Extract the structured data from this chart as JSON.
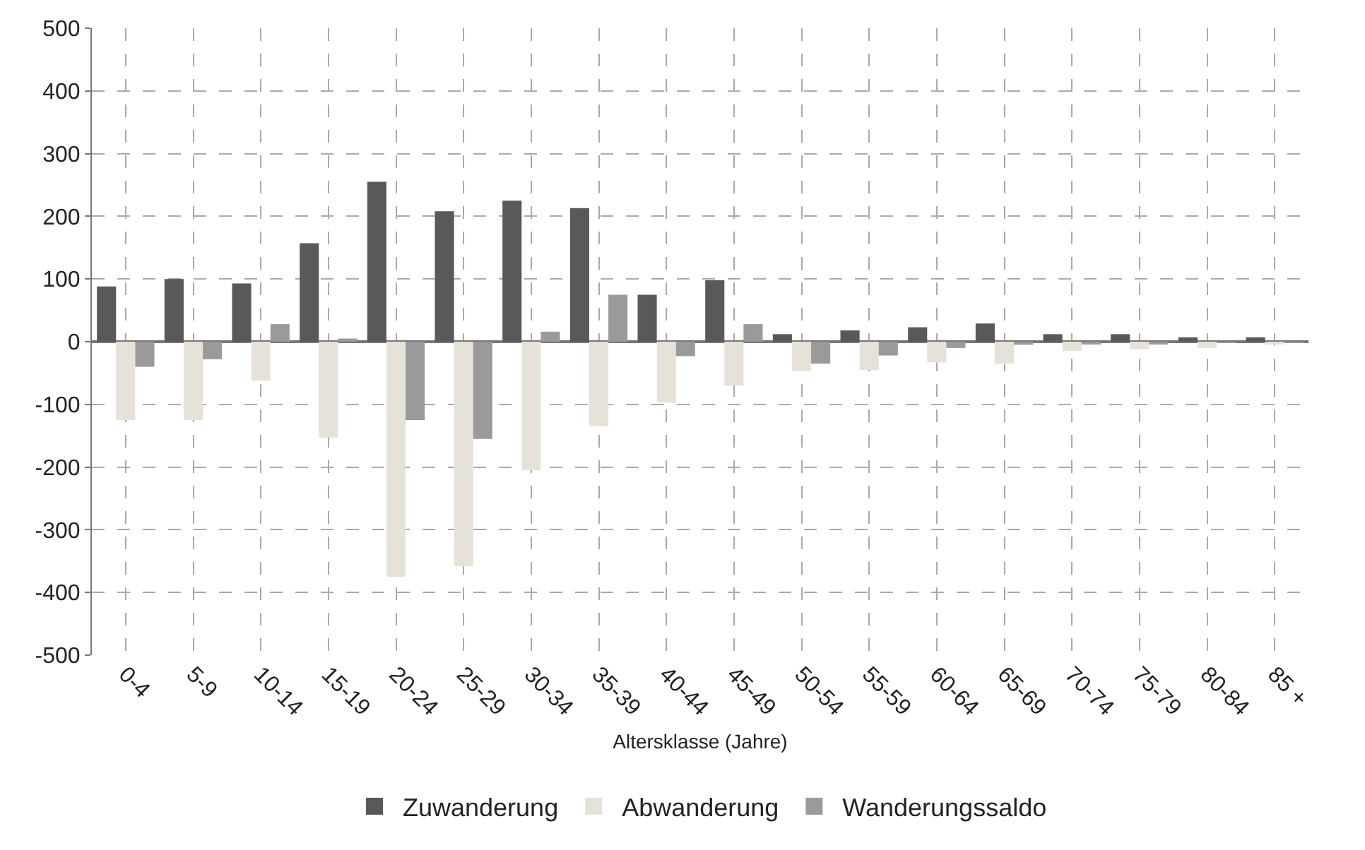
{
  "chart_data": {
    "type": "bar",
    "xlabel": "Altersklasse (Jahre)",
    "categories": [
      "0-4",
      "5-9",
      "10-14",
      "15-19",
      "20-24",
      "25-29",
      "30-34",
      "35-39",
      "40-44",
      "45-49",
      "50-54",
      "55-59",
      "60-64",
      "65-69",
      "70-74",
      "75-79",
      "80-84",
      "85 +"
    ],
    "series": [
      {
        "name": "Zuwanderung",
        "color": "#5a5858",
        "values": [
          88,
          100,
          93,
          157,
          255,
          208,
          225,
          213,
          75,
          98,
          12,
          18,
          23,
          29,
          12,
          12,
          7,
          7
        ]
      },
      {
        "name": "Abwanderung",
        "color": "#e6e2da",
        "values": [
          -125,
          -125,
          -62,
          -153,
          -375,
          -358,
          -205,
          -135,
          -97,
          -70,
          -47,
          -45,
          -33,
          -35,
          -15,
          -12,
          -10,
          -3
        ]
      },
      {
        "name": "Wanderungssaldo",
        "color": "#9a9a9a",
        "values": [
          -40,
          -28,
          28,
          5,
          -125,
          -155,
          16,
          75,
          -23,
          28,
          -35,
          -22,
          -10,
          -5,
          -4,
          -3,
          -2,
          -1
        ]
      }
    ],
    "ylim": [
      -500,
      500
    ],
    "yticks": [
      -500,
      -400,
      -300,
      -200,
      -100,
      0,
      100,
      200,
      300,
      400,
      500
    ],
    "grid": true,
    "legend": "bottom"
  }
}
